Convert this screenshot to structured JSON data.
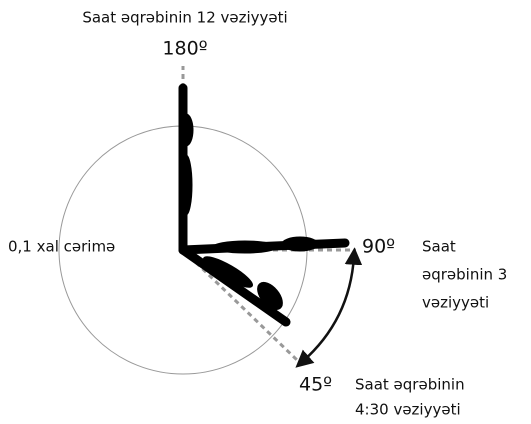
{
  "title": "Saat əqrəbinin 12 vəziyyəti",
  "angles": {
    "top": "180º",
    "right": "90º",
    "diagonal": "45º"
  },
  "penalty": "0,1 xal cərimə",
  "right_caption": [
    "Saat",
    "əqrəbinin 3",
    "vəziyyəti"
  ],
  "diagonal_caption": [
    "Saat əqrəbinin",
    "4:30 vəziyyəti"
  ]
}
